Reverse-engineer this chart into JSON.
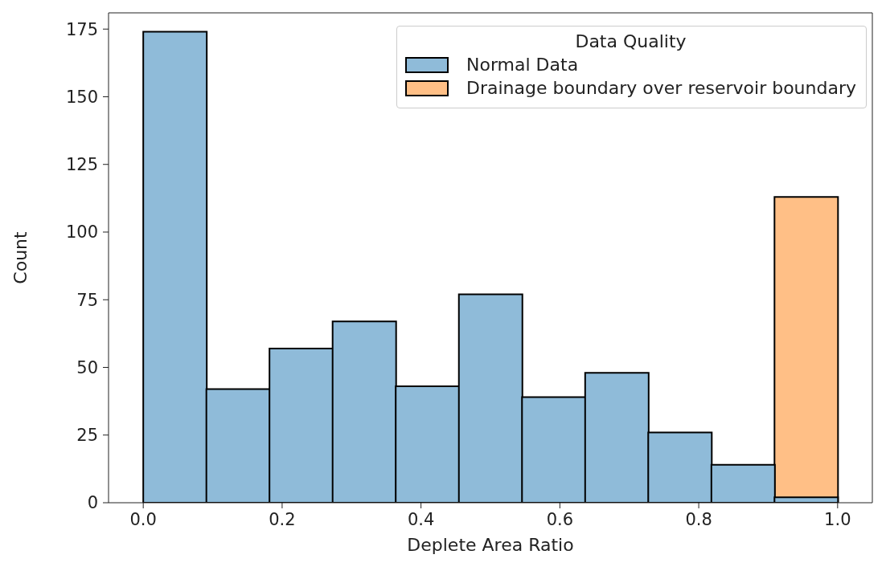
{
  "chart_data": {
    "type": "histogram",
    "xlabel": "Deplete Area Ratio",
    "ylabel": "Count",
    "legend_title": "Data Quality",
    "bins": [
      0,
      0.0909,
      0.1818,
      0.2727,
      0.3636,
      0.4545,
      0.5455,
      0.6364,
      0.7273,
      0.8182,
      0.9091,
      1.0
    ],
    "series": [
      {
        "name": "Normal Data",
        "color": "#8fbbd9",
        "values": [
          174,
          42,
          57,
          67,
          43,
          77,
          39,
          48,
          26,
          14,
          2
        ]
      },
      {
        "name": "Drainage boundary over reservoir boundary",
        "color": "#ffbf86",
        "values": [
          0,
          0,
          0,
          0,
          0,
          0,
          0,
          0,
          0,
          0,
          113
        ]
      }
    ],
    "xlim": [
      -0.05,
      1.05
    ],
    "xticks": [
      {
        "value": 0,
        "label": "0.0"
      },
      {
        "value": 0.2,
        "label": "0.2"
      },
      {
        "value": 0.4,
        "label": "0.4"
      },
      {
        "value": 0.6,
        "label": "0.6"
      },
      {
        "value": 0.8,
        "label": "0.8"
      },
      {
        "value": 1,
        "label": "1.0"
      }
    ],
    "ylim": [
      0,
      181
    ],
    "yticks": [
      0,
      25,
      50,
      75,
      100,
      125,
      150,
      175
    ],
    "legend": "top right",
    "grid": false
  }
}
